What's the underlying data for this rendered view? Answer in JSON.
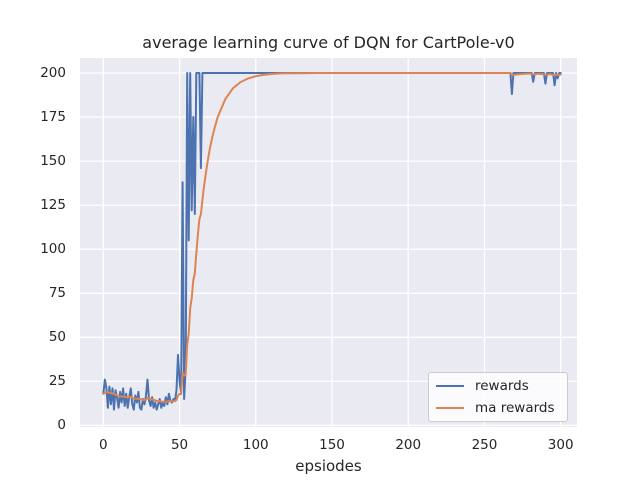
{
  "chart_data": {
    "type": "line",
    "title": "average learning curve of DQN for CartPole-v0",
    "xlabel": "epsiodes",
    "ylabel": "",
    "xlim": [
      -15.3,
      310.7
    ],
    "ylim": [
      -0.9,
      208.5
    ],
    "xticks": [
      0,
      50,
      100,
      150,
      200,
      250,
      300
    ],
    "yticks": [
      0,
      25,
      50,
      75,
      100,
      125,
      150,
      175,
      200
    ],
    "grid": true,
    "style": {
      "axes_background": "#EAEAF2",
      "grid_color": "#FFFFFF",
      "grid_width": 1.3,
      "text_color": "#262626",
      "figure_background": "#FFFFFF",
      "line_width": 2
    },
    "legend": {
      "position": "lower right",
      "labels": [
        "rewards",
        "ma rewards"
      ]
    },
    "series": [
      {
        "name": "rewards",
        "color": "#4C72B0",
        "points": [
          [
            0,
            18
          ],
          [
            1,
            26
          ],
          [
            2,
            21
          ],
          [
            3,
            10
          ],
          [
            4,
            22
          ],
          [
            5,
            12
          ],
          [
            6,
            21
          ],
          [
            7,
            9
          ],
          [
            8,
            20
          ],
          [
            9,
            16
          ],
          [
            10,
            10
          ],
          [
            11,
            19
          ],
          [
            12,
            13
          ],
          [
            13,
            21
          ],
          [
            14,
            11
          ],
          [
            15,
            18
          ],
          [
            16,
            10
          ],
          [
            17,
            16
          ],
          [
            18,
            21
          ],
          [
            19,
            12
          ],
          [
            20,
            9
          ],
          [
            21,
            17
          ],
          [
            22,
            13
          ],
          [
            23,
            19
          ],
          [
            24,
            10
          ],
          [
            25,
            9
          ],
          [
            26,
            15
          ],
          [
            27,
            12
          ],
          [
            28,
            17
          ],
          [
            29,
            26
          ],
          [
            30,
            14
          ],
          [
            31,
            11
          ],
          [
            32,
            16
          ],
          [
            33,
            10
          ],
          [
            34,
            13
          ],
          [
            35,
            9
          ],
          [
            36,
            12
          ],
          [
            37,
            15
          ],
          [
            38,
            10
          ],
          [
            39,
            13
          ],
          [
            40,
            11
          ],
          [
            41,
            16
          ],
          [
            42,
            12
          ],
          [
            43,
            18
          ],
          [
            44,
            14
          ],
          [
            45,
            13
          ],
          [
            46,
            15
          ],
          [
            47,
            14
          ],
          [
            48,
            20
          ],
          [
            49,
            40
          ],
          [
            50,
            25
          ],
          [
            51,
            18
          ],
          [
            52,
            138
          ],
          [
            53,
            15
          ],
          [
            54,
            33
          ],
          [
            55,
            200
          ],
          [
            56,
            105
          ],
          [
            57,
            200
          ],
          [
            58,
            122
          ],
          [
            59,
            175
          ],
          [
            60,
            120
          ],
          [
            61,
            200
          ],
          [
            62,
            200
          ],
          [
            63,
            200
          ],
          [
            64,
            146
          ],
          [
            65,
            200
          ],
          [
            267,
            200
          ],
          [
            268,
            188
          ],
          [
            269,
            200
          ],
          [
            281,
            200
          ],
          [
            282,
            195
          ],
          [
            283,
            200
          ],
          [
            289,
            200
          ],
          [
            290,
            194
          ],
          [
            291,
            200
          ],
          [
            295,
            200
          ],
          [
            296,
            193
          ],
          [
            297,
            200
          ],
          [
            298,
            197
          ],
          [
            299,
            200
          ],
          [
            300,
            200
          ]
        ]
      },
      {
        "name": "ma rewards",
        "color": "#DD8452",
        "points": [
          [
            0,
            18
          ],
          [
            2,
            19
          ],
          [
            4,
            18.5
          ],
          [
            6,
            18.1
          ],
          [
            8,
            17.5
          ],
          [
            10,
            16.6
          ],
          [
            12,
            16.4
          ],
          [
            14,
            16.3
          ],
          [
            16,
            15.8
          ],
          [
            18,
            16.3
          ],
          [
            20,
            15.2
          ],
          [
            22,
            15.2
          ],
          [
            24,
            15
          ],
          [
            26,
            14.4
          ],
          [
            28,
            14.5
          ],
          [
            29,
            15.6
          ],
          [
            31,
            15
          ],
          [
            33,
            14.6
          ],
          [
            35,
            13.9
          ],
          [
            37,
            13.8
          ],
          [
            39,
            13.4
          ],
          [
            41,
            13.5
          ],
          [
            43,
            13.8
          ],
          [
            45,
            13.7
          ],
          [
            47,
            13.8
          ],
          [
            48,
            14.5
          ],
          [
            49,
            17
          ],
          [
            50,
            17.8
          ],
          [
            51,
            17.8
          ],
          [
            52,
            29.8
          ],
          [
            53,
            28.3
          ],
          [
            54,
            28.8
          ],
          [
            55,
            45.9
          ],
          [
            56,
            51.8
          ],
          [
            57,
            66.6
          ],
          [
            58,
            72.2
          ],
          [
            59,
            82.5
          ],
          [
            60,
            86.2
          ],
          [
            61,
            97.6
          ],
          [
            62,
            107.8
          ],
          [
            63,
            117
          ],
          [
            64,
            119.9
          ],
          [
            65,
            127.9
          ],
          [
            66,
            135.1
          ],
          [
            67,
            141.6
          ],
          [
            68,
            147.5
          ],
          [
            69,
            152.7
          ],
          [
            70,
            157.5
          ],
          [
            72,
            165.6
          ],
          [
            75,
            175
          ],
          [
            80,
            185.2
          ],
          [
            85,
            191.3
          ],
          [
            90,
            194.8
          ],
          [
            95,
            196.9
          ],
          [
            100,
            198.2
          ],
          [
            105,
            198.9
          ],
          [
            110,
            199.4
          ],
          [
            115,
            199.7
          ],
          [
            120,
            199.8
          ],
          [
            130,
            199.9
          ],
          [
            140,
            200
          ],
          [
            200,
            200
          ],
          [
            267,
            200
          ],
          [
            268,
            198.8
          ],
          [
            270,
            199
          ],
          [
            274,
            199.4
          ],
          [
            280,
            199.7
          ],
          [
            282,
            199.3
          ],
          [
            286,
            199.6
          ],
          [
            290,
            199.1
          ],
          [
            293,
            199.3
          ],
          [
            296,
            198.8
          ],
          [
            300,
            199.1
          ]
        ]
      }
    ]
  }
}
